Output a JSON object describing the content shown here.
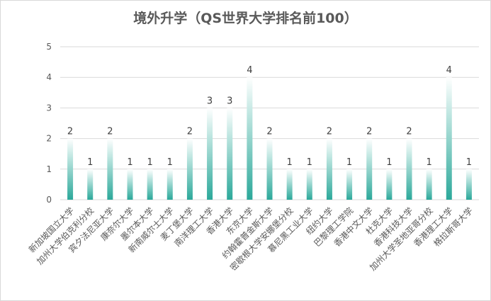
{
  "chart_data": {
    "type": "bar",
    "title": "境外升学（QS世界大学排名前100）",
    "categories": [
      "新加坡国立大学",
      "加州大学伯克利分校",
      "宾夕法尼亚大学",
      "康奈尔大学",
      "墨尔本大学",
      "新南威尔士大学",
      "麦丁堡大学",
      "南洋理工大学",
      "香港大学",
      "东京大学",
      "约翰霍普金斯大学",
      "密歇根大学安娜堡分校",
      "慕尼黑工业大学",
      "纽约大学",
      "巴黎理工学院",
      "香港中文大学",
      "杜克大学",
      "香港科技大学",
      "加州大学圣地亚哥分校",
      "香港理工大学",
      "格拉斯哥大学"
    ],
    "values": [
      2,
      1,
      2,
      1,
      1,
      1,
      2,
      3,
      3,
      4,
      2,
      1,
      1,
      2,
      1,
      2,
      1,
      2,
      1,
      4,
      1
    ],
    "ylim": [
      0,
      5
    ],
    "yticks": [
      0,
      1,
      2,
      3,
      4,
      5
    ],
    "grid": true,
    "legend": "none",
    "colors": {
      "bar_top": "#ffffff",
      "bar_bottom": "#2ba89a",
      "grid": "#d9d9d9"
    }
  }
}
